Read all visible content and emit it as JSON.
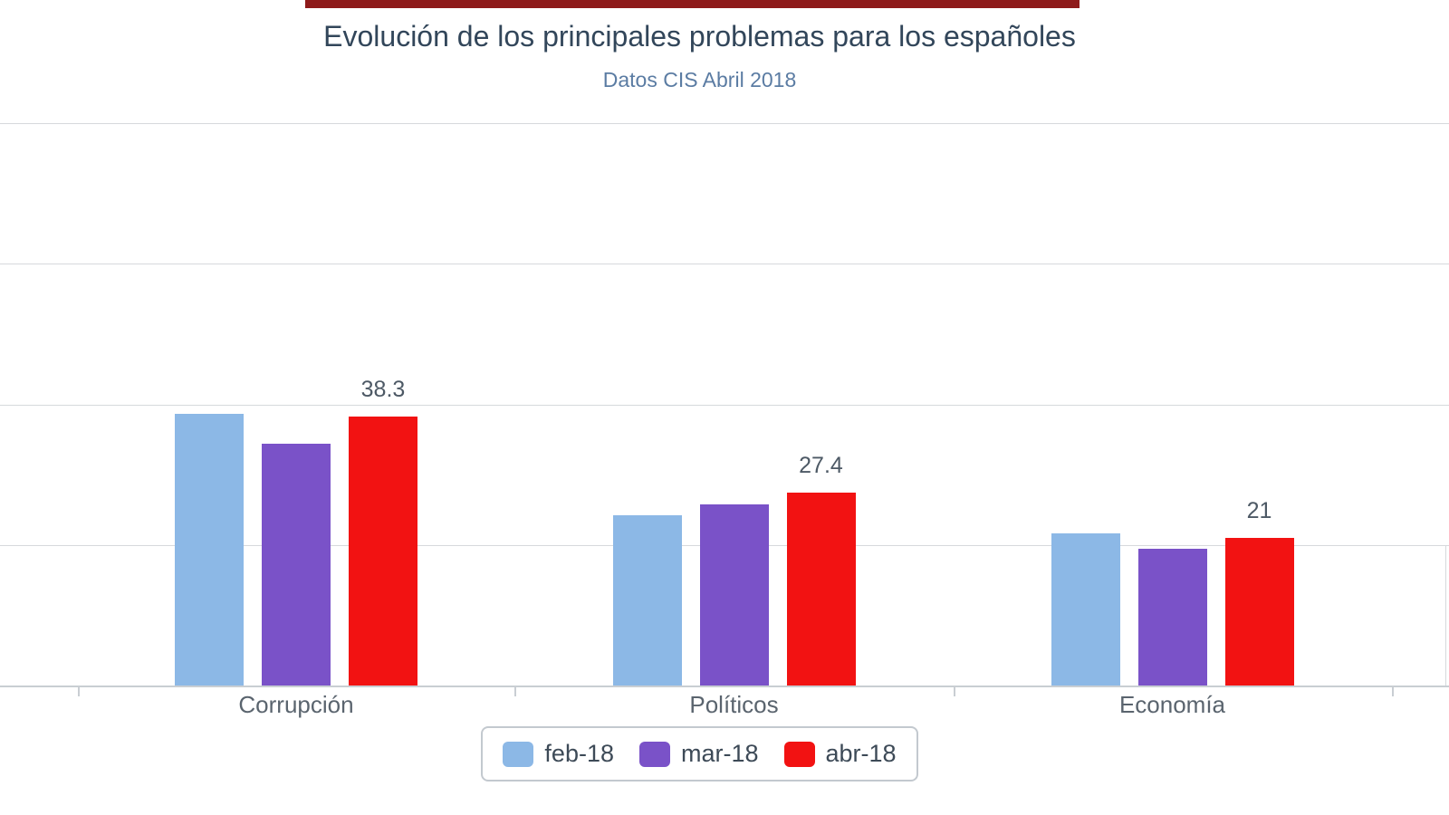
{
  "top_strip": {
    "description": "partially-cropped dark red element at very top edge of screenshot",
    "color": "#8E1A1A"
  },
  "chart_data": {
    "type": "bar",
    "title": "Evolución de los principales problemas para los españoles",
    "subtitle": "Datos CIS Abril 2018",
    "categories": [
      "Corrupción",
      "Políticos",
      "Economía"
    ],
    "series": [
      {
        "name": "feb-18",
        "color": "#8CB8E6",
        "values": [
          38.6,
          24.2,
          21.6
        ]
      },
      {
        "name": "mar-18",
        "color": "#7A52C8",
        "values": [
          34.4,
          25.8,
          19.5
        ]
      },
      {
        "name": "abr-18",
        "color": "#F21212",
        "values": [
          38.3,
          27.4,
          21
        ],
        "data_labels": [
          "38.3",
          "27.4",
          "21"
        ]
      }
    ],
    "xlabel": "",
    "ylabel": "",
    "ylim": [
      0,
      80
    ],
    "grid": true,
    "grid_interval": 20,
    "y_gridline_values": [
      20,
      40,
      60,
      80
    ],
    "legend_position": "bottom",
    "y_axis_labels_visible": false
  },
  "style_colors": {
    "title": "#32465A",
    "subtitle": "#5B7CA3",
    "category_label": "#5A646E",
    "data_label": "#4D5965",
    "legend_text": "#3D4A57",
    "gridline": "#D6D9DC",
    "axis": "#C9CED3"
  }
}
